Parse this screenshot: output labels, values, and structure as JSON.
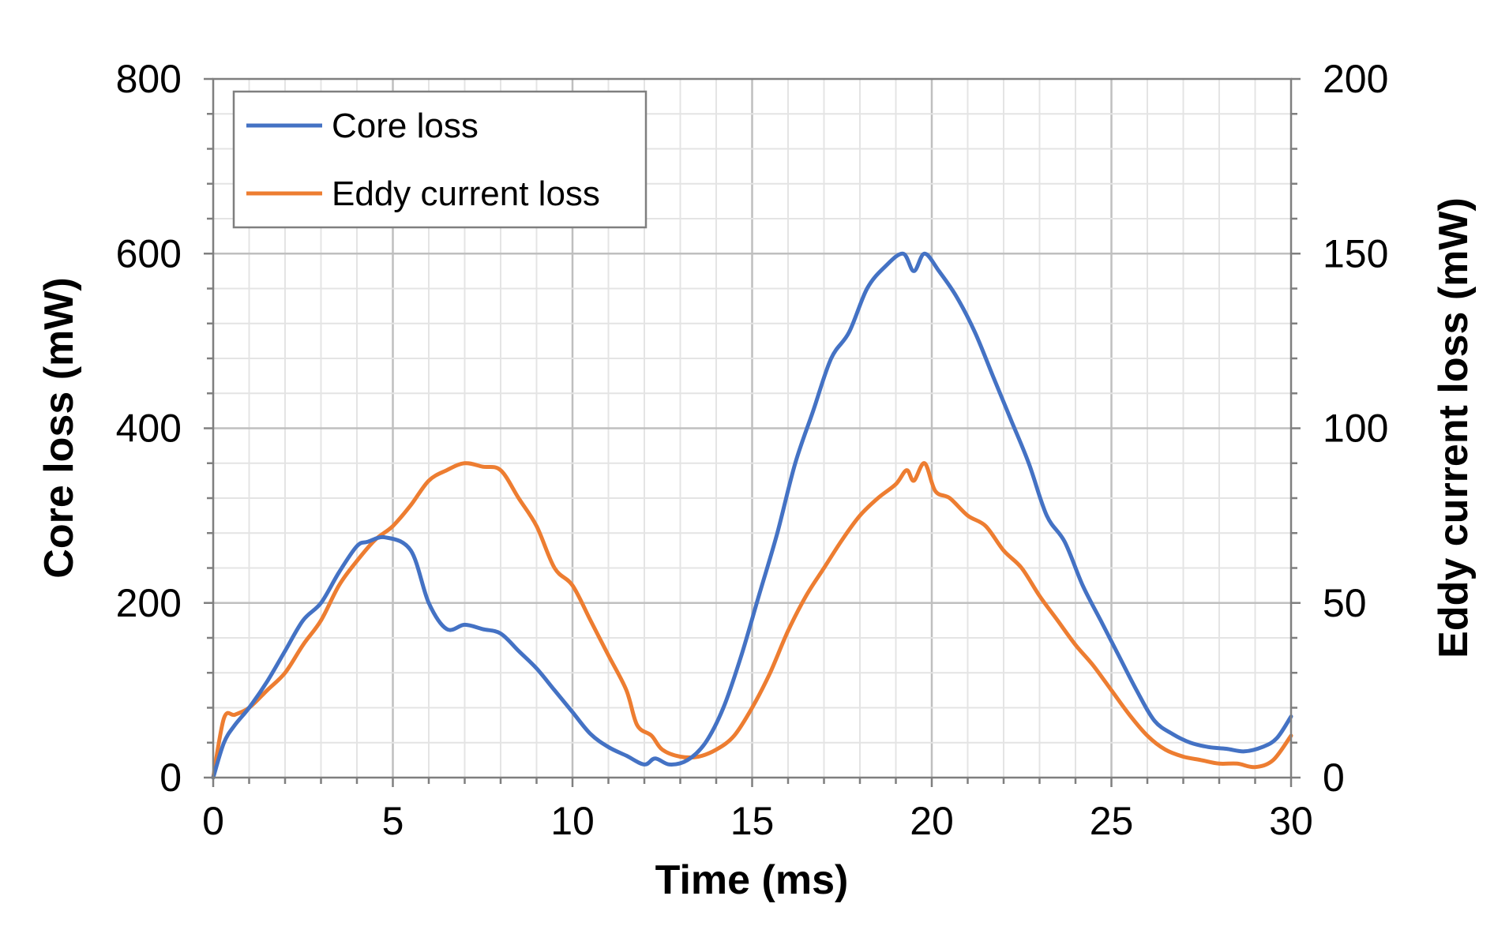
{
  "chart_data": {
    "type": "line",
    "title": "",
    "xlabel": "Time (ms)",
    "ylabel": "Core loss (mW)",
    "y2label": "Eddy current loss (mW)",
    "xlim": [
      0,
      30
    ],
    "ylim": [
      0,
      800
    ],
    "y2lim": [
      0,
      200
    ],
    "xticks": [
      "0",
      "5",
      "10",
      "15",
      "20",
      "25",
      "30"
    ],
    "yticks": [
      "0",
      "200",
      "400",
      "600",
      "800"
    ],
    "y2ticks": [
      "0",
      "50",
      "100",
      "150",
      "200"
    ],
    "grid": true,
    "legend_position": "top-left",
    "series": [
      {
        "name": "Core loss",
        "axis": "left",
        "color": "#4472C4",
        "x": [
          0,
          0.3,
          0.6,
          1,
          1.5,
          2,
          2.5,
          3,
          3.5,
          4,
          4.3,
          4.8,
          5.5,
          6,
          6.5,
          7,
          7.5,
          8,
          8.5,
          9,
          9.5,
          10,
          10.5,
          11,
          11.5,
          12,
          12.3,
          12.7,
          13.2,
          13.7,
          14.2,
          14.7,
          15.2,
          15.7,
          16.2,
          16.7,
          17.2,
          17.7,
          18.2,
          18.7,
          19.2,
          19.5,
          19.8,
          20.2,
          20.7,
          21.2,
          21.7,
          22.2,
          22.7,
          23.2,
          23.7,
          24.2,
          24.7,
          25.2,
          25.7,
          26.2,
          26.7,
          27.2,
          27.7,
          28.2,
          28.7,
          29.2,
          29.6,
          30
        ],
        "y": [
          0,
          40,
          60,
          80,
          110,
          145,
          180,
          200,
          235,
          265,
          270,
          275,
          260,
          200,
          170,
          175,
          170,
          165,
          145,
          125,
          100,
          75,
          50,
          35,
          25,
          15,
          22,
          15,
          20,
          40,
          80,
          140,
          210,
          280,
          360,
          420,
          480,
          510,
          560,
          585,
          600,
          580,
          600,
          580,
          550,
          510,
          460,
          410,
          360,
          300,
          270,
          220,
          180,
          140,
          100,
          65,
          50,
          40,
          35,
          33,
          30,
          35,
          45,
          70
        ]
      },
      {
        "name": "Eddy current loss",
        "axis": "right",
        "color": "#ED7D31",
        "x": [
          0,
          0.3,
          0.6,
          1,
          1.5,
          2,
          2.5,
          3,
          3.5,
          4,
          4.5,
          5,
          5.5,
          6,
          6.5,
          7,
          7.5,
          8,
          8.5,
          9,
          9.5,
          10,
          10.5,
          11,
          11.5,
          11.8,
          12.2,
          12.5,
          13,
          13.5,
          14,
          14.5,
          15,
          15.5,
          16,
          16.5,
          17,
          17.5,
          18,
          18.5,
          19,
          19.3,
          19.5,
          19.8,
          20.1,
          20.5,
          21,
          21.5,
          22,
          22.5,
          23,
          23.5,
          24,
          24.5,
          25,
          25.5,
          26,
          26.5,
          27,
          27.5,
          28,
          28.5,
          29,
          29.5,
          30
        ],
        "y": [
          0,
          17,
          18,
          20,
          25,
          30,
          38,
          45,
          55,
          62,
          68,
          72,
          78,
          85,
          88,
          90,
          89,
          88,
          80,
          72,
          60,
          55,
          45,
          35,
          25,
          15,
          12,
          8,
          6,
          6,
          8,
          12,
          20,
          30,
          42,
          52,
          60,
          68,
          75,
          80,
          84,
          88,
          85,
          90,
          82,
          80,
          75,
          72,
          65,
          60,
          52,
          45,
          38,
          32,
          25,
          18,
          12,
          8,
          6,
          5,
          4,
          4,
          3,
          5,
          12
        ]
      }
    ]
  }
}
